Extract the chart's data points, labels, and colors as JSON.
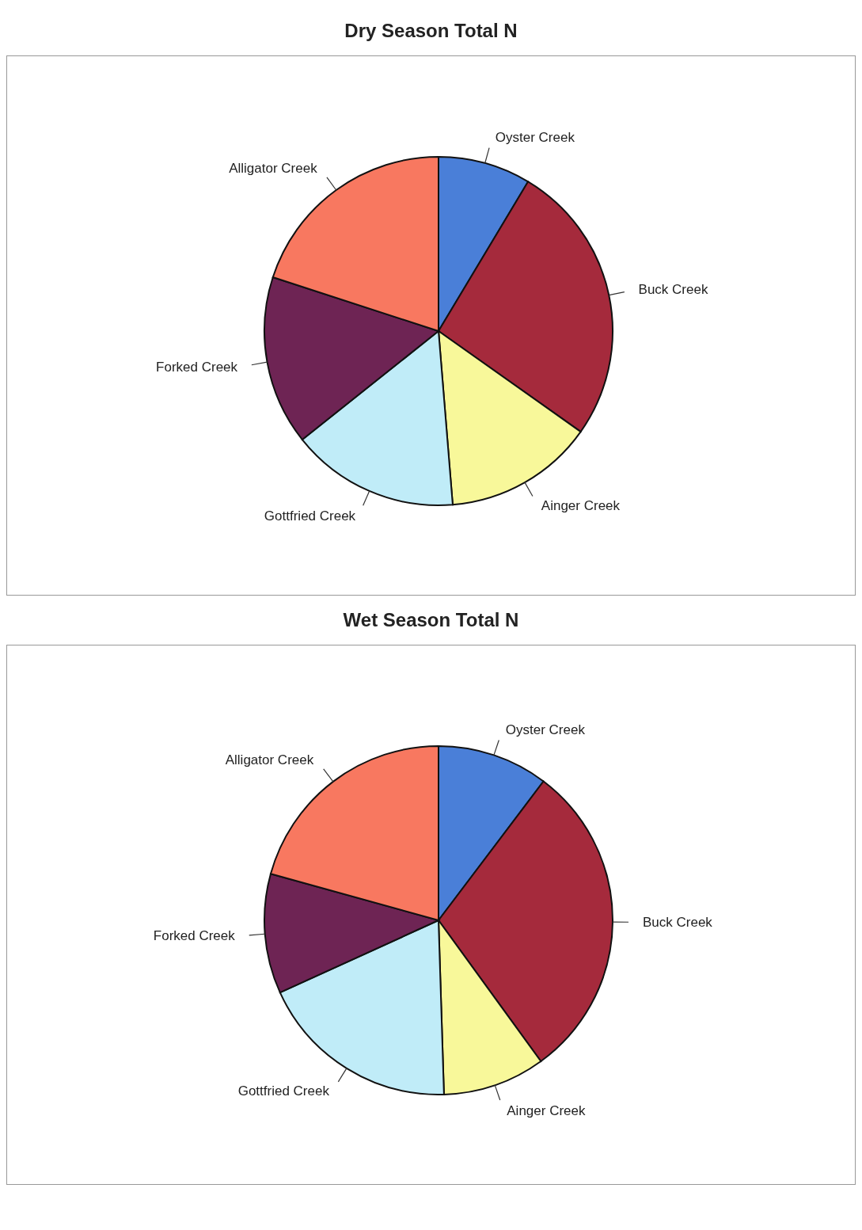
{
  "chart_data": [
    {
      "type": "pie",
      "title": "Dry Season Total N",
      "categories": [
        "Oyster Creek",
        "Buck Creek",
        "Ainger Creek",
        "Gottfried Creek",
        "Forked Creek",
        "Alligator Creek"
      ],
      "values": [
        8.6,
        26.2,
        13.9,
        15.6,
        15.7,
        20.0
      ],
      "colors": [
        "#4a7fd8",
        "#a52a3c",
        "#f8f89a",
        "#c0ecf8",
        "#6e2454",
        "#f87860"
      ]
    },
    {
      "type": "pie",
      "title": "Wet Season Total N",
      "categories": [
        "Oyster Creek",
        "Buck Creek",
        "Ainger Creek",
        "Gottfried Creek",
        "Forked Creek",
        "Alligator Creek"
      ],
      "values": [
        10.3,
        29.7,
        9.5,
        18.7,
        11.1,
        20.7
      ],
      "colors": [
        "#4a7fd8",
        "#a52a3c",
        "#f8f89a",
        "#c0ecf8",
        "#6e2454",
        "#f87860"
      ]
    }
  ]
}
